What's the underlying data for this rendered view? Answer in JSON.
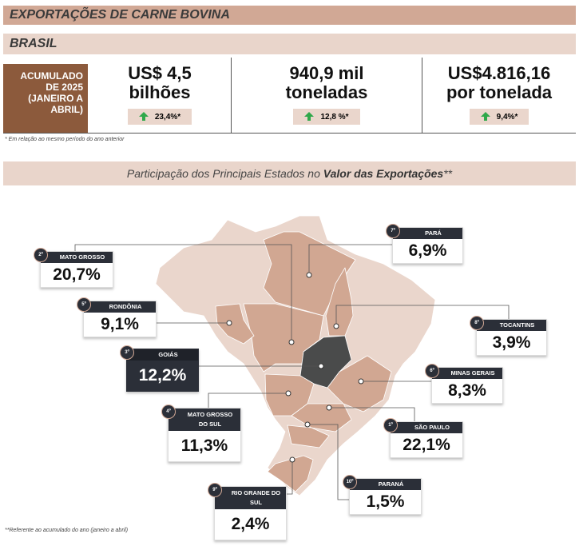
{
  "title": "EXPORTAÇÕES DE CARNE BOVINA",
  "region": "BRASIL",
  "period_label": [
    "ACUMULADO",
    "DE 2025",
    "(JANEIRO A",
    "ABRIL)"
  ],
  "kpis": [
    {
      "line1": "US$ 4,5",
      "line2": "bilhões",
      "change": "23,4%*"
    },
    {
      "line1": "940,9 mil",
      "line2": "toneladas",
      "change": "12,8 %*"
    },
    {
      "line1": "US$4.816,16",
      "line2": "por tonelada",
      "change": "9,4%*"
    }
  ],
  "kpi_note": "* Em relação ao mesmo período do ano anterior",
  "map_title_pre": "Participação dos Principais Estados no ",
  "map_title_bold": "Valor das Exportações",
  "map_title_post": "**",
  "states": [
    {
      "rank": "1º",
      "name": "SÃO PAULO",
      "value": "22,1%"
    },
    {
      "rank": "2º",
      "name": "MATO GROSSO",
      "value": "20,7%"
    },
    {
      "rank": "3º",
      "name": "GOIÁS",
      "value": "12,2%"
    },
    {
      "rank": "4º",
      "name": "MATO GROSSO DO SUL",
      "value": "11,3%"
    },
    {
      "rank": "5º",
      "name": "RONDÔNIA",
      "value": "9,1%"
    },
    {
      "rank": "6º",
      "name": "MINAS GERAIS",
      "value": "8,3%"
    },
    {
      "rank": "7º",
      "name": "PARÁ",
      "value": "6,9%"
    },
    {
      "rank": "8º",
      "name": "TOCANTINS",
      "value": "3,9%"
    },
    {
      "rank": "9º",
      "name": "RIO GRANDE DO SUL",
      "value": "2,4%"
    },
    {
      "rank": "10º",
      "name": "PARANÁ",
      "value": "1,5%"
    }
  ],
  "colors": {
    "header": "#d1a895",
    "light": "#e9d5cb",
    "accent": "#8c5a3c",
    "dark": "#2b2f38",
    "up": "#2fa84a"
  },
  "footnote": "**Referente ao acumulado do ano (janeiro a abril)"
}
